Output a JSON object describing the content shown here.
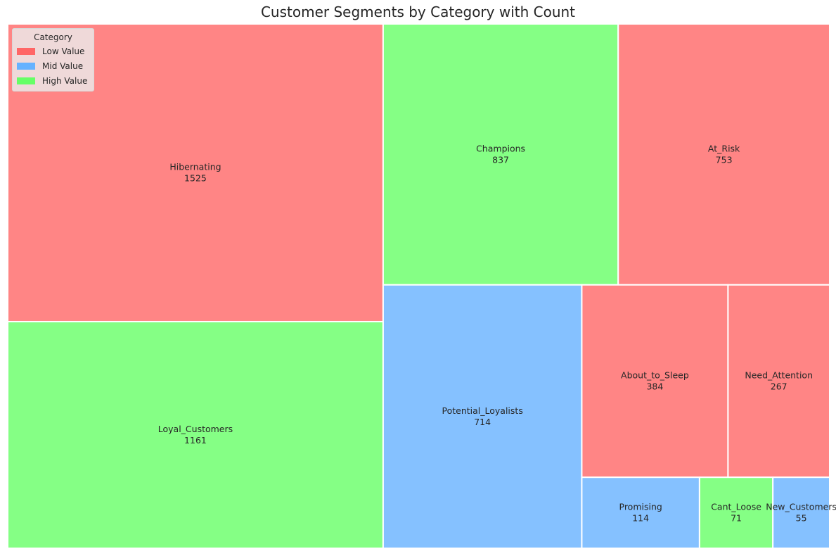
{
  "chart_data": {
    "type": "treemap",
    "title": "Customer Segments by Category with Count",
    "legend": {
      "title": "Category",
      "placement": "top-left",
      "entries": [
        {
          "label": "Low Value",
          "color": "#ff6666"
        },
        {
          "label": "Mid Value",
          "color": "#66b2ff"
        },
        {
          "label": "High Value",
          "color": "#66ff66"
        }
      ]
    },
    "segments": [
      {
        "name": "Hibernating",
        "count": 1525,
        "category": "Low Value"
      },
      {
        "name": "Loyal_Customers",
        "count": 1161,
        "category": "High Value"
      },
      {
        "name": "Champions",
        "count": 837,
        "category": "High Value"
      },
      {
        "name": "At_Risk",
        "count": 753,
        "category": "Low Value"
      },
      {
        "name": "Potential_Loyalists",
        "count": 714,
        "category": "Mid Value"
      },
      {
        "name": "About_to_Sleep",
        "count": 384,
        "category": "Low Value"
      },
      {
        "name": "Need_Attention",
        "count": 267,
        "category": "Low Value"
      },
      {
        "name": "Promising",
        "count": 114,
        "category": "Mid Value"
      },
      {
        "name": "Cant_Loose",
        "count": 71,
        "category": "High Value"
      },
      {
        "name": "New_Customers",
        "count": 55,
        "category": "Mid Value"
      }
    ]
  }
}
